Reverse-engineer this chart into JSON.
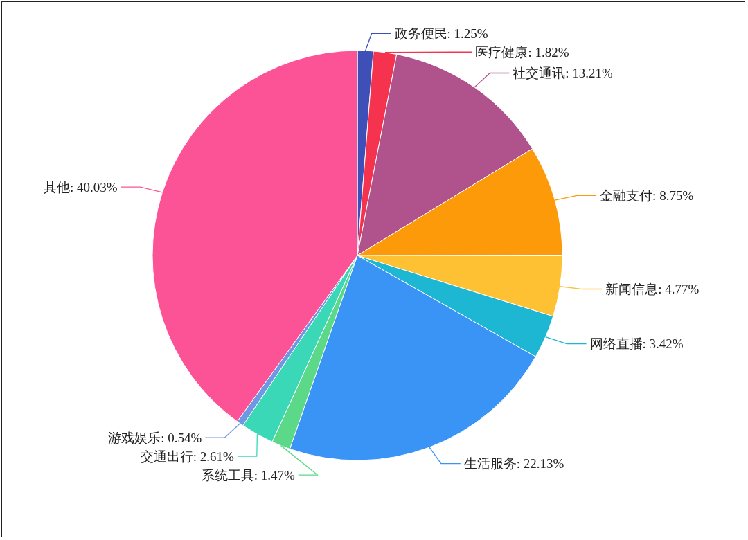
{
  "chart_data": {
    "type": "pie",
    "categories": [
      "政务便民",
      "医疗健康",
      "社交通讯",
      "金融支付",
      "新闻信息",
      "网络直播",
      "生活服务",
      "系统工具",
      "交通出行",
      "游戏娱乐",
      "其他"
    ],
    "values": [
      1.25,
      1.82,
      13.21,
      8.75,
      4.77,
      3.42,
      22.13,
      1.47,
      2.61,
      0.54,
      40.03
    ],
    "value_labels": [
      "1.25%",
      "1.82%",
      "13.21%",
      "8.75%",
      "4.77%",
      "3.42%",
      "22.13%",
      "1.47%",
      "2.61%",
      "0.54%",
      "40.03%"
    ],
    "colors": [
      "#3f4fb8",
      "#f5334f",
      "#b0528c",
      "#fd9a0a",
      "#fec134",
      "#1db7d3",
      "#3a94f5",
      "#5bd888",
      "#3ad8b7",
      "#6e98e4",
      "#fc5396"
    ]
  }
}
